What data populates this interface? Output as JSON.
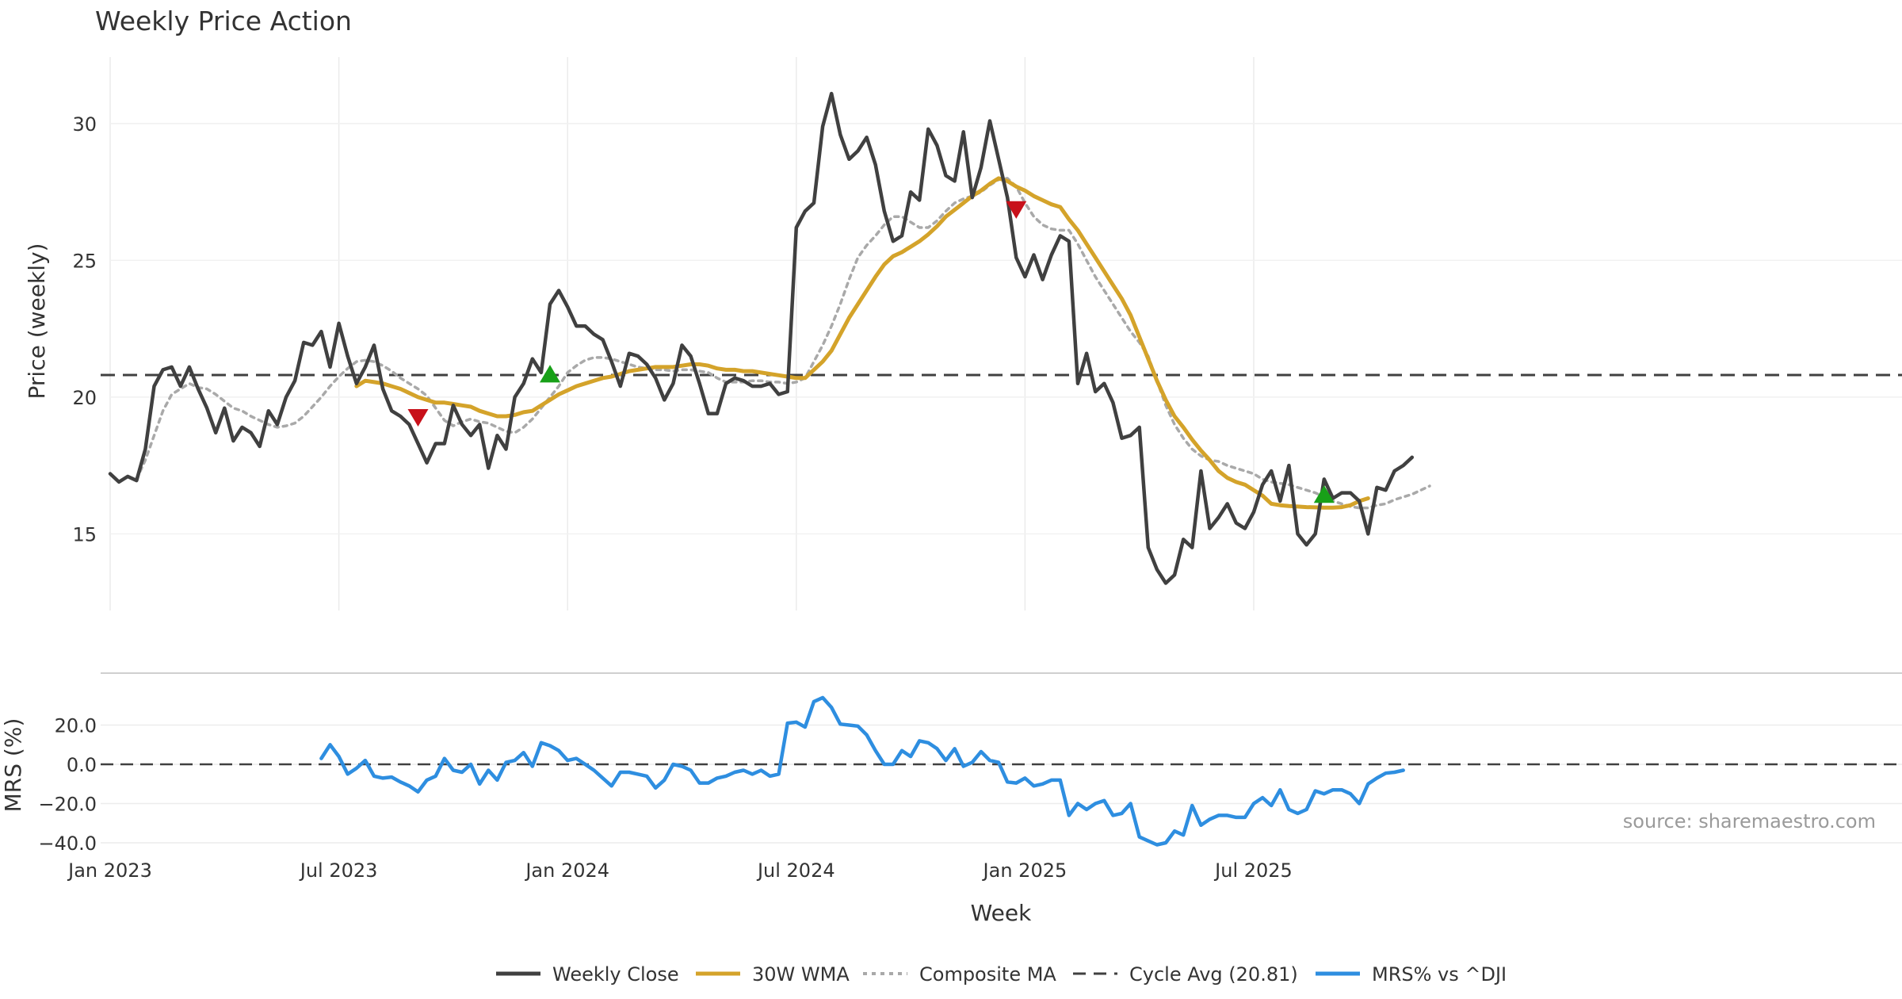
{
  "chart_data": {
    "type": "line",
    "title": "Weekly Price Action",
    "source": "source: sharemaestro.com",
    "xlabel": "Week",
    "x_ticks": [
      "Jan 2023",
      "Jul 2023",
      "Jan 2024",
      "Jul 2024",
      "Jan 2025",
      "Jul 2025"
    ],
    "x_tick_weeks": [
      0,
      26,
      52,
      78,
      104,
      130
    ],
    "price_panel": {
      "ylabel": "Price (weekly)",
      "ylim": [
        12.2,
        32.2
      ],
      "y_ticks": [
        15,
        20,
        25,
        30
      ],
      "cycle_avg": 20.81,
      "series": [
        {
          "name": "Weekly Close",
          "color": "#404040",
          "start_week": 0,
          "values": [
            17.2,
            16.9,
            17.1,
            16.95,
            18.1,
            20.4,
            21.0,
            21.1,
            20.4,
            21.1,
            20.3,
            19.6,
            18.7,
            19.6,
            18.4,
            18.9,
            18.7,
            18.2,
            19.5,
            19.0,
            20.0,
            20.6,
            22.0,
            21.9,
            22.4,
            21.1,
            22.7,
            21.5,
            20.5,
            21.1,
            21.9,
            20.3,
            19.5,
            19.3,
            19.0,
            18.3,
            17.6,
            18.3,
            18.3,
            19.7,
            19.0,
            18.6,
            19.0,
            17.4,
            18.6,
            18.1,
            20.0,
            20.5,
            21.4,
            20.9,
            23.4,
            23.9,
            23.3,
            22.6,
            22.6,
            22.3,
            22.1,
            21.3,
            20.4,
            21.6,
            21.5,
            21.2,
            20.7,
            19.9,
            20.5,
            21.9,
            21.5,
            20.5,
            19.4,
            19.4,
            20.5,
            20.7,
            20.6,
            20.4,
            20.4,
            20.5,
            20.1,
            20.2,
            26.2,
            26.8,
            27.1,
            29.9,
            31.1,
            29.6,
            28.7,
            29.0,
            29.5,
            28.5,
            26.8,
            25.7,
            25.9,
            27.5,
            27.2,
            29.8,
            29.2,
            28.1,
            27.9,
            29.7,
            27.3,
            28.4,
            30.1,
            28.7,
            27.3,
            25.1,
            24.4,
            25.2,
            24.3,
            25.2,
            25.9,
            25.7,
            20.5,
            21.6,
            20.2,
            20.5,
            19.8,
            18.5,
            18.6,
            18.9,
            14.5,
            13.7,
            13.2,
            13.5,
            14.8,
            14.5,
            17.3,
            15.2,
            15.6,
            16.1,
            15.4,
            15.2,
            15.8,
            16.8,
            17.3,
            16.2,
            17.5,
            15.0,
            14.6,
            15.0,
            17.0,
            16.3,
            16.5,
            16.5,
            16.2,
            15.0,
            16.7,
            16.6,
            17.3,
            17.5,
            17.8
          ]
        },
        {
          "name": "30W WMA",
          "color": "#d4a32a",
          "start_week": 28,
          "values": [
            20.4,
            20.6,
            20.55,
            20.5,
            20.4,
            20.3,
            20.15,
            20.0,
            19.9,
            19.8,
            19.8,
            19.75,
            19.7,
            19.65,
            19.5,
            19.4,
            19.3,
            19.3,
            19.35,
            19.45,
            19.5,
            19.7,
            19.9,
            20.1,
            20.25,
            20.4,
            20.5,
            20.6,
            20.7,
            20.75,
            20.85,
            20.95,
            21.0,
            21.05,
            21.1,
            21.1,
            21.1,
            21.15,
            21.2,
            21.2,
            21.15,
            21.05,
            21.0,
            21.0,
            20.95,
            20.95,
            20.9,
            20.85,
            20.8,
            20.75,
            20.7,
            20.7,
            21.0,
            21.3,
            21.7,
            22.3,
            22.9,
            23.4,
            23.9,
            24.4,
            24.85,
            25.15,
            25.3,
            25.5,
            25.7,
            25.95,
            26.25,
            26.6,
            26.85,
            27.1,
            27.35,
            27.55,
            27.8,
            28.0,
            27.9,
            27.7,
            27.55,
            27.35,
            27.2,
            27.05,
            26.95,
            26.5,
            26.1,
            25.6,
            25.1,
            24.6,
            24.1,
            23.6,
            23.0,
            22.2,
            21.4,
            20.6,
            19.9,
            19.3,
            18.9,
            18.45,
            18.05,
            17.7,
            17.3,
            17.05,
            16.9,
            16.8,
            16.6,
            16.4,
            16.1,
            16.05,
            16.02,
            16.0,
            15.98,
            15.97,
            15.96,
            15.96,
            15.98,
            16.05,
            16.2,
            16.3
          ]
        },
        {
          "name": "Composite MA",
          "color": "#a9a9a9",
          "start_week": 3,
          "values": [
            17.0,
            17.7,
            18.6,
            19.5,
            20.1,
            20.3,
            20.5,
            20.35,
            20.3,
            20.1,
            19.85,
            19.6,
            19.5,
            19.3,
            19.15,
            19.0,
            18.9,
            18.95,
            19.05,
            19.3,
            19.65,
            20.0,
            20.4,
            20.75,
            21.05,
            21.3,
            21.35,
            21.3,
            21.15,
            20.95,
            20.7,
            20.5,
            20.3,
            20.05,
            19.6,
            19.15,
            18.95,
            19.1,
            19.2,
            19.1,
            19.05,
            18.9,
            18.75,
            18.7,
            18.9,
            19.2,
            19.6,
            20.0,
            20.4,
            20.9,
            21.15,
            21.35,
            21.45,
            21.45,
            21.4,
            21.3,
            21.2,
            21.1,
            21.05,
            21.0,
            21.0,
            20.95,
            21.0,
            21.0,
            20.95,
            20.9,
            20.7,
            20.55,
            20.55,
            20.55,
            20.6,
            20.6,
            20.55,
            20.55,
            20.5,
            20.55,
            20.7,
            21.3,
            21.9,
            22.6,
            23.4,
            24.3,
            25.1,
            25.55,
            25.9,
            26.3,
            26.6,
            26.6,
            26.4,
            26.2,
            26.2,
            26.45,
            26.8,
            27.1,
            27.25,
            27.35,
            27.5,
            27.75,
            27.95,
            28.0,
            27.7,
            27.1,
            26.6,
            26.3,
            26.15,
            26.1,
            26.1,
            25.6,
            25.0,
            24.4,
            23.9,
            23.4,
            22.9,
            22.4,
            22.0,
            21.5,
            20.6,
            19.7,
            19.0,
            18.5,
            18.1,
            17.85,
            17.7,
            17.65,
            17.5,
            17.4,
            17.3,
            17.2,
            17.0,
            16.9,
            16.85,
            16.8,
            16.7,
            16.6,
            16.5,
            16.35,
            16.2,
            16.1,
            16.0,
            15.95,
            15.95,
            16.05,
            16.1,
            16.25,
            16.35,
            16.45,
            16.6,
            16.75
          ]
        }
      ],
      "signals": [
        {
          "type": "sell",
          "week": 35,
          "value": 19.3,
          "color": "#c8101a"
        },
        {
          "type": "buy",
          "week": 50,
          "value": 20.8,
          "color": "#18a018"
        },
        {
          "type": "sell",
          "week": 103,
          "value": 26.9,
          "color": "#c8101a"
        },
        {
          "type": "buy",
          "week": 138,
          "value": 16.4,
          "color": "#18a018"
        }
      ]
    },
    "mrs_panel": {
      "ylabel": "MRS (%)",
      "ylim": [
        -42,
        38
      ],
      "y_ticks": [
        20.0,
        0.0,
        -20.0,
        -40.0
      ],
      "y_tick_labels": [
        "20.0",
        "0.0",
        "−20.0",
        "−40.0"
      ],
      "series": [
        {
          "name": "MRS% vs ^DJI",
          "color": "#2e8ee0",
          "start_week": 24,
          "values": [
            3,
            10,
            4,
            -5,
            -2,
            2,
            -6,
            -7,
            -6.5,
            -9,
            -11,
            -14,
            -8,
            -6,
            3,
            -3,
            -4,
            0,
            -10,
            -3,
            -8,
            1,
            2,
            6,
            -1,
            11,
            9.5,
            7,
            2,
            3,
            0,
            -3,
            -7,
            -11,
            -4,
            -4,
            -5,
            -6,
            -12,
            -8,
            0,
            -1,
            -3,
            -9.5,
            -9.5,
            -7,
            -6,
            -4,
            -3,
            -5,
            -3,
            -6,
            -5,
            21,
            21.5,
            19,
            32,
            34,
            29,
            20.5,
            20,
            19.5,
            15,
            7,
            0,
            0,
            7,
            4,
            12,
            11,
            8,
            2,
            8,
            -1,
            1,
            6.5,
            2,
            1,
            -9,
            -9.5,
            -7,
            -11,
            -10,
            -8,
            -8,
            -26,
            -20,
            -23,
            -20,
            -18.5,
            -26,
            -25,
            -20,
            -37,
            -39,
            -41,
            -40,
            -34,
            -36,
            -21,
            -31,
            -28,
            -26,
            -26,
            -27,
            -27,
            -20,
            -17,
            -21,
            -13,
            -23,
            -25,
            -23,
            -13.5,
            -15,
            -13,
            -13,
            -15,
            -20,
            -10,
            -7,
            -4.5,
            -4,
            -3
          ]
        }
      ]
    },
    "legend": [
      {
        "label": "Weekly Close",
        "style": "solid",
        "color": "#404040"
      },
      {
        "label": "30W WMA",
        "style": "solid",
        "color": "#d4a32a"
      },
      {
        "label": "Composite MA",
        "style": "dotted",
        "color": "#a9a9a9"
      },
      {
        "label": "Cycle Avg (20.81)",
        "style": "dashed",
        "color": "#404040"
      },
      {
        "label": "MRS% vs ^DJI",
        "style": "solid",
        "color": "#2e8ee0"
      }
    ]
  }
}
